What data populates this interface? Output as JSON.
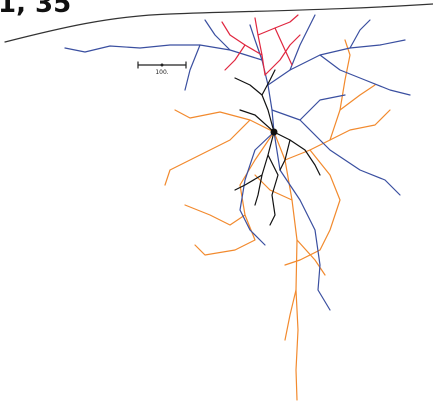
{
  "label": "1, 35",
  "scale_bar": {
    "label": "100."
  }
}
